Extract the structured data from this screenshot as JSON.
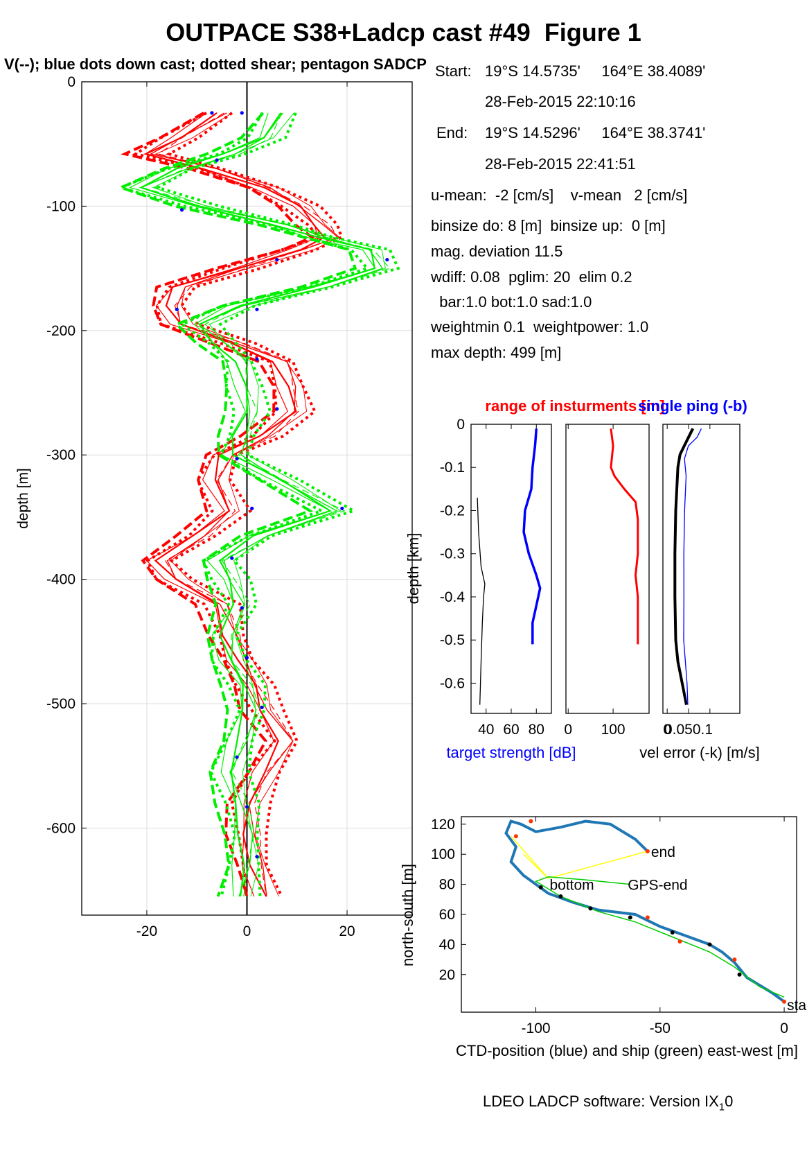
{
  "title": "OUTPACE S38+Ladcp cast #49  Figure 1",
  "subtitle": "V(--); blue dots down cast; dotted shear; pentagon SADCP",
  "info": {
    "start_label": "Start:",
    "start_pos": "19°S 14.5735'     164°E 38.4089'",
    "start_time": "28-Feb-2015 22:10:16",
    "end_label": "End:",
    "end_pos": "19°S 14.5296'     164°E 38.3741'",
    "end_time": "28-Feb-2015 22:41:51",
    "means": "u-mean:  -2 [cm/s]    v-mean   2 [cm/s]",
    "binsize": "binsize do: 8 [m]  binsize up:  0 [m]",
    "magdev": "mag. deviation 11.5",
    "wdiff": "wdiff: 0.08  pglim: 20  elim 0.2",
    "bar": "  bar:1.0 bot:1.0 sad:1.0",
    "weight": "weightmin 0.1  weightpower: 1.0",
    "maxdepth": "max depth: 499 [m]"
  },
  "footer": "LDEO LADCP software: Version IX",
  "footer_sub": "1",
  "footer_tail": "0",
  "colors": {
    "u": "#ff0000",
    "v": "#00ee00",
    "ts": "#0000ff",
    "track": "#1f77b4",
    "ship": "#00cc00",
    "gps": "#ffff00"
  },
  "chart_data": [
    {
      "type": "line",
      "name": "velocity profile",
      "ylabel": "depth [m]",
      "xlim": [
        -33,
        33
      ],
      "ylim": [
        -670,
        0
      ],
      "xticks": [
        -20,
        0,
        20
      ],
      "yticks": [
        0,
        -100,
        -200,
        -300,
        -400,
        -500,
        -600
      ],
      "grid": true,
      "depth": [
        -25,
        -45,
        -58,
        -70,
        -85,
        -100,
        -115,
        -125,
        -135,
        -150,
        -165,
        -180,
        -195,
        -210,
        -225,
        -245,
        -265,
        -285,
        -300,
        -320,
        -345,
        -365,
        -385,
        -400,
        -420,
        -445,
        -465,
        -485,
        -505,
        -530,
        -555,
        -580,
        -605,
        -630,
        -655
      ],
      "series": [
        {
          "name": "u",
          "color": "red",
          "values": [
            -6,
            -14,
            -20,
            -8,
            3,
            10,
            14,
            16,
            10,
            -2,
            -14,
            -16,
            -14,
            -3,
            6,
            8,
            9,
            3,
            -5,
            -7,
            -4,
            -10,
            -18,
            -15,
            -6,
            -4,
            -2,
            1,
            3,
            7,
            3,
            0,
            0,
            1,
            3
          ]
        },
        {
          "name": "v",
          "color": "green",
          "values": [
            6,
            3,
            -4,
            -14,
            -22,
            -10,
            6,
            14,
            24,
            26,
            14,
            -2,
            -10,
            -6,
            -2,
            -1,
            0,
            -2,
            -3,
            6,
            17,
            2,
            -6,
            -4,
            -2,
            -5,
            -4,
            -1,
            0,
            -2,
            -4,
            -2,
            -1,
            -1,
            -2
          ]
        }
      ],
      "sadcp_dots": [
        [
          -7,
          -25
        ],
        [
          -1,
          -25
        ],
        [
          -6,
          -63
        ],
        [
          -13,
          -103
        ],
        [
          6,
          -143
        ],
        [
          28,
          -143
        ],
        [
          -14,
          -183
        ],
        [
          2,
          -183
        ],
        [
          2,
          -223
        ],
        [
          6,
          -263
        ],
        [
          -2,
          -303
        ],
        [
          1,
          -343
        ],
        [
          19,
          -343
        ],
        [
          -3,
          -383
        ],
        [
          -1,
          -423
        ],
        [
          0,
          -463
        ],
        [
          3,
          -503
        ],
        [
          -2,
          -543
        ],
        [
          0,
          -583
        ],
        [
          2,
          -623
        ]
      ]
    },
    {
      "type": "line",
      "name": "target strength",
      "ylabel": "depth [km]",
      "xlabel": "target strength [dB]",
      "xlim": [
        28,
        92
      ],
      "ylim": [
        -0.67,
        0
      ],
      "xticks": [
        40,
        60,
        80
      ],
      "yticks": [
        0,
        -0.1,
        -0.2,
        -0.3,
        -0.4,
        -0.5,
        -0.6
      ],
      "series": [
        {
          "name": "blue",
          "color": "blue",
          "depth": [
            -0.01,
            -0.05,
            -0.1,
            -0.15,
            -0.2,
            -0.25,
            -0.3,
            -0.35,
            -0.38,
            -0.42,
            -0.46,
            -0.51
          ],
          "values": [
            80,
            79,
            77,
            76,
            71,
            70,
            74,
            80,
            83,
            80,
            77,
            77
          ]
        },
        {
          "name": "black",
          "color": "black",
          "depth": [
            -0.17,
            -0.25,
            -0.33,
            -0.37,
            -0.4,
            -0.46,
            -0.55,
            -0.65
          ],
          "values": [
            33,
            34,
            36,
            39,
            38,
            37,
            36,
            35
          ]
        }
      ]
    },
    {
      "type": "line",
      "name": "range of instruments",
      "title": "range of insturments [m]",
      "xlim": [
        -5,
        180
      ],
      "ylim": [
        -0.67,
        0
      ],
      "xticks": [
        0,
        100
      ],
      "series": [
        {
          "name": "range",
          "color": "red",
          "depth": [
            -0.01,
            -0.05,
            -0.1,
            -0.12,
            -0.15,
            -0.18,
            -0.22,
            -0.3,
            -0.35,
            -0.4,
            -0.51
          ],
          "values": [
            95,
            100,
            95,
            103,
            125,
            150,
            155,
            155,
            150,
            155,
            155
          ]
        }
      ]
    },
    {
      "type": "line",
      "name": "velocity error",
      "title": "single ping (-b)",
      "xlabel": "vel error (-k) [m/s]",
      "xlim": [
        -0.01,
        0.17
      ],
      "ylim": [
        -0.67,
        0
      ],
      "xticks": [
        0,
        0.05,
        0.1
      ],
      "xticklabels": [
        "0",
        "0.050.1"
      ],
      "series": [
        {
          "name": "black",
          "color": "black",
          "depth": [
            -0.01,
            -0.03,
            -0.05,
            -0.07,
            -0.1,
            -0.2,
            -0.3,
            -0.4,
            -0.5,
            -0.55,
            -0.6,
            -0.65
          ],
          "values": [
            0.06,
            0.05,
            0.04,
            0.03,
            0.025,
            0.02,
            0.018,
            0.018,
            0.02,
            0.025,
            0.035,
            0.045
          ]
        },
        {
          "name": "blue",
          "color": "blue",
          "depth": [
            -0.01,
            -0.03,
            -0.05,
            -0.08,
            -0.12,
            -0.2,
            -0.3,
            -0.4,
            -0.5,
            -0.6,
            -0.65
          ],
          "values": [
            0.08,
            0.07,
            0.05,
            0.04,
            0.045,
            0.04,
            0.04,
            0.038,
            0.04,
            0.045,
            0.05
          ]
        }
      ]
    },
    {
      "type": "line",
      "name": "CTD position",
      "xlabel": "CTD-position (blue) and ship (green) east-west [m]",
      "ylabel": "north-south [m]",
      "xlim": [
        -130,
        5
      ],
      "ylim": [
        -5,
        125
      ],
      "xticks": [
        -100,
        -50,
        0
      ],
      "yticks": [
        20,
        40,
        60,
        80,
        100,
        120
      ],
      "labels": {
        "end": "end",
        "bottom": "bottom",
        "gps_end": "GPS-end",
        "start": "start"
      },
      "series": [
        {
          "name": "CTD",
          "color": "blue",
          "x": [
            0,
            -5,
            -15,
            -20,
            -25,
            -30,
            -40,
            -50,
            -60,
            -75,
            -85,
            -95,
            -100,
            -105,
            -110,
            -108,
            -112,
            -110,
            -106,
            -100,
            -90,
            -80,
            -70,
            -60,
            -55
          ],
          "y": [
            2,
            8,
            18,
            28,
            35,
            40,
            46,
            52,
            60,
            63,
            68,
            74,
            80,
            86,
            95,
            105,
            114,
            122,
            120,
            115,
            118,
            122,
            120,
            110,
            102
          ]
        },
        {
          "name": "ship",
          "color": "green",
          "x": [
            0,
            -10,
            -20,
            -30,
            -45,
            -60,
            -75,
            -90,
            -100,
            -95,
            -80,
            -62
          ],
          "y": [
            5,
            12,
            25,
            35,
            45,
            55,
            62,
            72,
            82,
            85,
            83,
            80
          ]
        }
      ]
    }
  ]
}
